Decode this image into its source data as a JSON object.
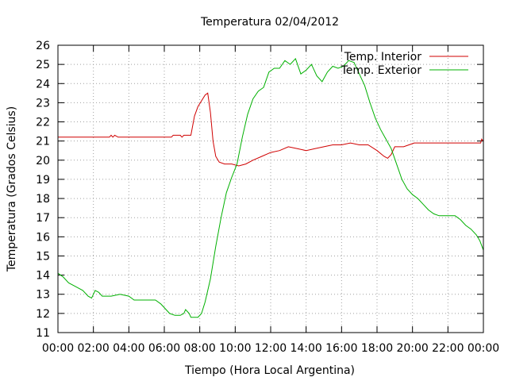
{
  "chart_data": {
    "type": "line",
    "title": "Temperatura 02/04/2012",
    "xlabel": "Tiempo (Hora Local Argentina)",
    "ylabel": "Temperatura (Grados Celsius)",
    "xlim": [
      0,
      24
    ],
    "ylim": [
      11,
      26
    ],
    "x_ticks": [
      {
        "value": 0,
        "label": "00:00"
      },
      {
        "value": 2,
        "label": "02:00"
      },
      {
        "value": 4,
        "label": "04:00"
      },
      {
        "value": 6,
        "label": "06:00"
      },
      {
        "value": 8,
        "label": "08:00"
      },
      {
        "value": 10,
        "label": "10:00"
      },
      {
        "value": 12,
        "label": "12:00"
      },
      {
        "value": 14,
        "label": "14:00"
      },
      {
        "value": 16,
        "label": "16:00"
      },
      {
        "value": 18,
        "label": "18:00"
      },
      {
        "value": 20,
        "label": "20:00"
      },
      {
        "value": 22,
        "label": "22:00"
      },
      {
        "value": 24,
        "label": "00:00"
      }
    ],
    "y_ticks": [
      11,
      12,
      13,
      14,
      15,
      16,
      17,
      18,
      19,
      20,
      21,
      22,
      23,
      24,
      25,
      26
    ],
    "grid": true,
    "legend_position": "top-right",
    "series": [
      {
        "name": "Temp. Interior",
        "color": "#d00000",
        "points": [
          [
            0,
            21.2
          ],
          [
            1,
            21.2
          ],
          [
            2,
            21.2
          ],
          [
            2.9,
            21.2
          ],
          [
            3.0,
            21.3
          ],
          [
            3.1,
            21.2
          ],
          [
            3.2,
            21.3
          ],
          [
            3.4,
            21.2
          ],
          [
            4,
            21.2
          ],
          [
            5,
            21.2
          ],
          [
            6,
            21.2
          ],
          [
            6.4,
            21.2
          ],
          [
            6.5,
            21.3
          ],
          [
            6.9,
            21.3
          ],
          [
            7.0,
            21.2
          ],
          [
            7.1,
            21.3
          ],
          [
            7.3,
            21.3
          ],
          [
            7.5,
            21.3
          ],
          [
            7.7,
            22.3
          ],
          [
            7.9,
            22.8
          ],
          [
            8.1,
            23.1
          ],
          [
            8.3,
            23.4
          ],
          [
            8.45,
            23.5
          ],
          [
            8.6,
            22.5
          ],
          [
            8.75,
            21.0
          ],
          [
            8.9,
            20.2
          ],
          [
            9.1,
            19.9
          ],
          [
            9.4,
            19.8
          ],
          [
            9.8,
            19.8
          ],
          [
            10.2,
            19.7
          ],
          [
            10.6,
            19.8
          ],
          [
            11.0,
            20.0
          ],
          [
            11.5,
            20.2
          ],
          [
            12.0,
            20.4
          ],
          [
            12.5,
            20.5
          ],
          [
            13.0,
            20.7
          ],
          [
            13.5,
            20.6
          ],
          [
            14.0,
            20.5
          ],
          [
            14.5,
            20.6
          ],
          [
            15.0,
            20.7
          ],
          [
            15.5,
            20.8
          ],
          [
            16.0,
            20.8
          ],
          [
            16.5,
            20.9
          ],
          [
            17.0,
            20.8
          ],
          [
            17.5,
            20.8
          ],
          [
            18.0,
            20.5
          ],
          [
            18.4,
            20.2
          ],
          [
            18.6,
            20.1
          ],
          [
            18.8,
            20.3
          ],
          [
            19.0,
            20.7
          ],
          [
            19.5,
            20.7
          ],
          [
            19.8,
            20.8
          ],
          [
            20.1,
            20.9
          ],
          [
            21,
            20.9
          ],
          [
            22,
            20.9
          ],
          [
            23,
            20.9
          ],
          [
            23.85,
            20.9
          ],
          [
            23.9,
            21.1
          ],
          [
            24,
            21.0
          ]
        ]
      },
      {
        "name": "Temp. Exterior",
        "color": "#00b000",
        "points": [
          [
            0,
            14.1
          ],
          [
            0.3,
            13.9
          ],
          [
            0.6,
            13.6
          ],
          [
            1.0,
            13.4
          ],
          [
            1.4,
            13.2
          ],
          [
            1.7,
            12.9
          ],
          [
            1.9,
            12.8
          ],
          [
            2.1,
            13.2
          ],
          [
            2.3,
            13.1
          ],
          [
            2.5,
            12.9
          ],
          [
            3.0,
            12.9
          ],
          [
            3.5,
            13.0
          ],
          [
            4.0,
            12.9
          ],
          [
            4.3,
            12.7
          ],
          [
            4.8,
            12.7
          ],
          [
            5.5,
            12.7
          ],
          [
            5.8,
            12.5
          ],
          [
            6.0,
            12.3
          ],
          [
            6.3,
            12.0
          ],
          [
            6.6,
            11.9
          ],
          [
            6.9,
            11.9
          ],
          [
            7.1,
            12.0
          ],
          [
            7.2,
            12.2
          ],
          [
            7.4,
            12.0
          ],
          [
            7.5,
            11.8
          ],
          [
            7.9,
            11.8
          ],
          [
            8.1,
            12.0
          ],
          [
            8.3,
            12.6
          ],
          [
            8.6,
            13.8
          ],
          [
            8.9,
            15.5
          ],
          [
            9.2,
            17.0
          ],
          [
            9.5,
            18.3
          ],
          [
            9.8,
            19.1
          ],
          [
            10.1,
            19.8
          ],
          [
            10.4,
            21.2
          ],
          [
            10.7,
            22.4
          ],
          [
            11.0,
            23.2
          ],
          [
            11.3,
            23.6
          ],
          [
            11.6,
            23.8
          ],
          [
            11.9,
            24.6
          ],
          [
            12.2,
            24.8
          ],
          [
            12.5,
            24.8
          ],
          [
            12.8,
            25.2
          ],
          [
            13.1,
            25.0
          ],
          [
            13.4,
            25.3
          ],
          [
            13.7,
            24.5
          ],
          [
            14.0,
            24.7
          ],
          [
            14.3,
            25.0
          ],
          [
            14.6,
            24.4
          ],
          [
            14.9,
            24.1
          ],
          [
            15.2,
            24.6
          ],
          [
            15.5,
            24.9
          ],
          [
            15.8,
            24.8
          ],
          [
            16.1,
            24.9
          ],
          [
            16.4,
            25.2
          ],
          [
            16.7,
            25.1
          ],
          [
            17.0,
            24.5
          ],
          [
            17.3,
            23.9
          ],
          [
            17.6,
            23.0
          ],
          [
            17.9,
            22.2
          ],
          [
            18.2,
            21.6
          ],
          [
            18.5,
            21.1
          ],
          [
            18.8,
            20.6
          ],
          [
            19.1,
            19.8
          ],
          [
            19.4,
            19.0
          ],
          [
            19.7,
            18.5
          ],
          [
            20.0,
            18.2
          ],
          [
            20.3,
            18.0
          ],
          [
            20.6,
            17.7
          ],
          [
            20.9,
            17.4
          ],
          [
            21.2,
            17.2
          ],
          [
            21.5,
            17.1
          ],
          [
            21.8,
            17.1
          ],
          [
            22.1,
            17.1
          ],
          [
            22.4,
            17.1
          ],
          [
            22.7,
            16.9
          ],
          [
            23.0,
            16.6
          ],
          [
            23.3,
            16.4
          ],
          [
            23.6,
            16.1
          ],
          [
            23.8,
            15.8
          ],
          [
            24,
            15.3
          ]
        ]
      }
    ]
  }
}
